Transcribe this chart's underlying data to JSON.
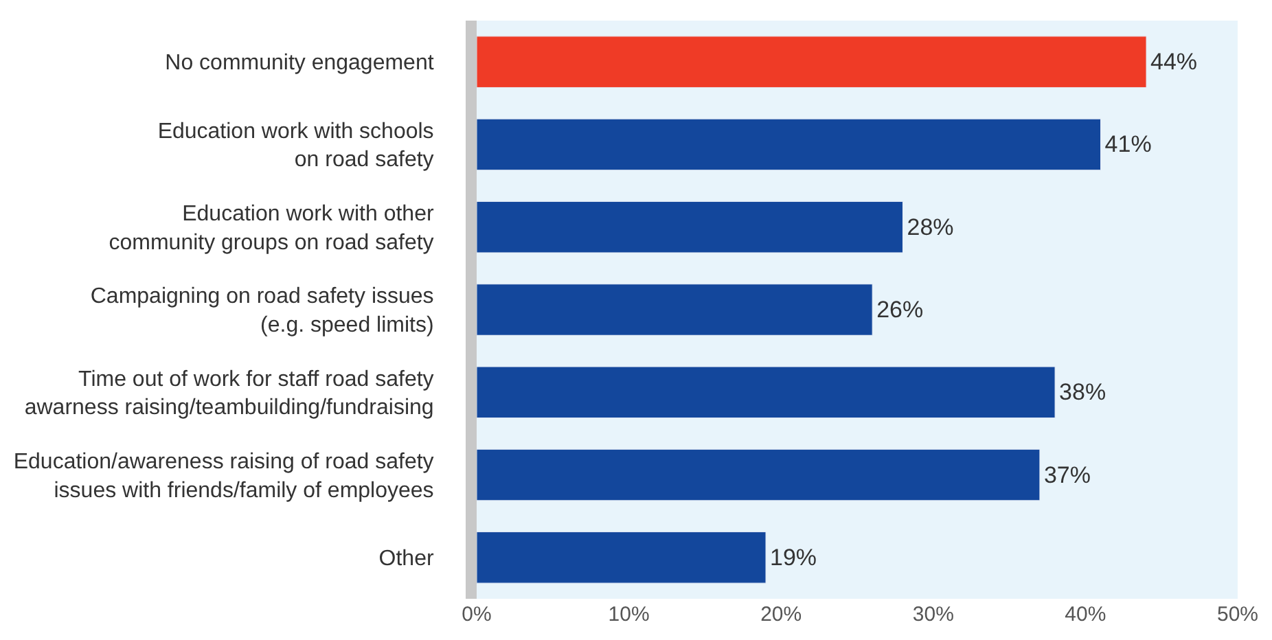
{
  "chart_data": {
    "type": "bar",
    "orientation": "horizontal",
    "categories": [
      "No community engagement",
      "Education work with schools\non road safety",
      "Education work with other\ncommunity groups on road safety",
      "Campaigning on road safety issues\n(e.g. speed limits)",
      "Time out of work for staff road safety\nawarness raising/teambuilding/fundraising",
      "Education/awareness raising of road safety\nissues with friends/family of employees",
      "Other"
    ],
    "values": [
      44,
      41,
      28,
      26,
      38,
      37,
      19
    ],
    "colors": [
      "#ef3b26",
      "#13479c",
      "#13479c",
      "#13479c",
      "#13479c",
      "#13479c",
      "#13479c"
    ],
    "value_labels": [
      "44%",
      "41%",
      "28%",
      "26%",
      "38%",
      "37%",
      "19%"
    ],
    "xlim": [
      0,
      50
    ],
    "xticks": [
      {
        "value": 0,
        "label": "0%"
      },
      {
        "value": 10,
        "label": "10%"
      },
      {
        "value": 20,
        "label": "20%"
      },
      {
        "value": 30,
        "label": "30%"
      },
      {
        "value": 40,
        "label": "40%"
      },
      {
        "value": 50,
        "label": "50%"
      }
    ],
    "grid": false,
    "legend": false
  }
}
